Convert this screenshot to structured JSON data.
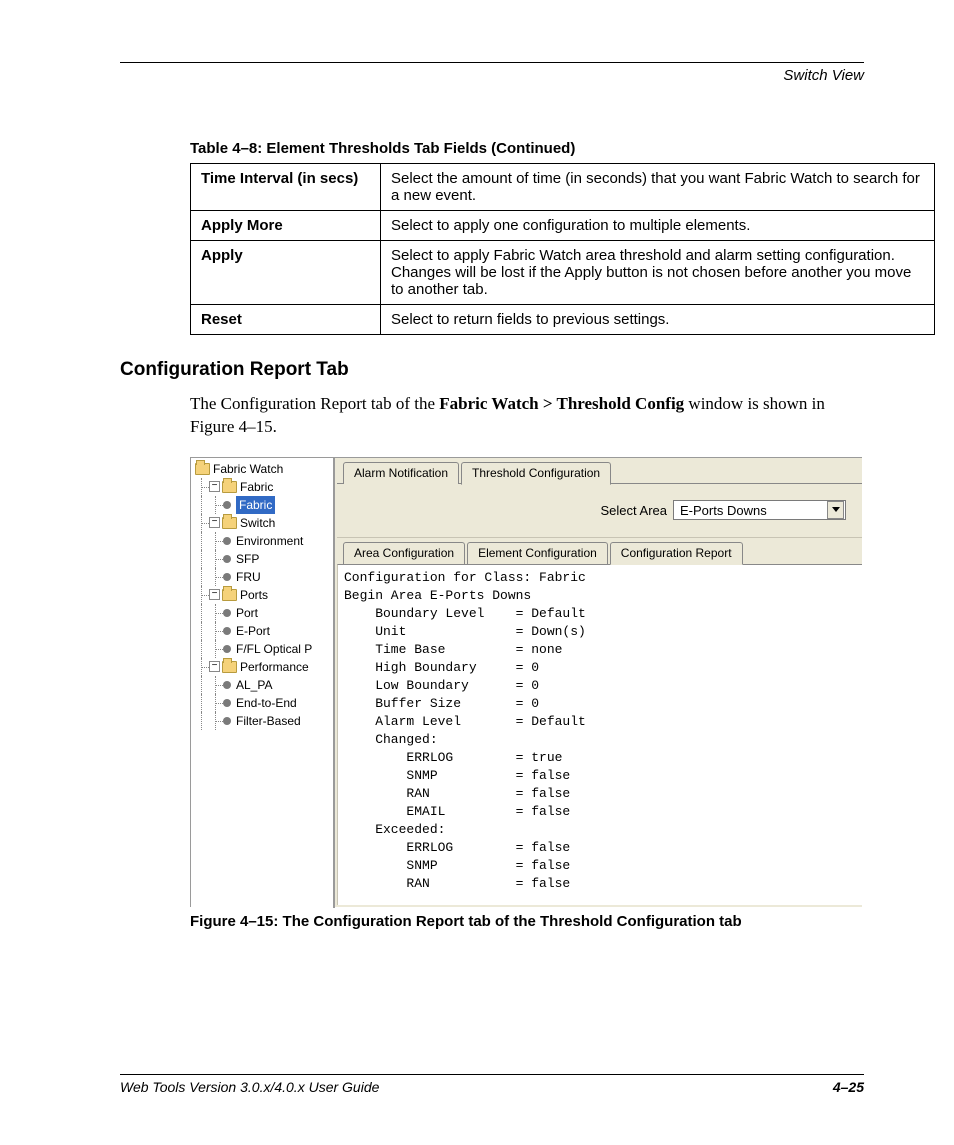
{
  "header": {
    "section": "Switch View"
  },
  "table": {
    "caption": "Table 4–8:  Element Thresholds Tab Fields (Continued)",
    "rows": [
      {
        "k": "Time Interval (in secs)",
        "v": "Select the amount of time (in seconds) that you want Fabric Watch to search for a new event."
      },
      {
        "k": "Apply More",
        "v": "Select to apply one configuration to multiple elements."
      },
      {
        "k": "Apply",
        "v": "Select to apply Fabric Watch area threshold and alarm setting configuration. Changes will be lost if the Apply button is not chosen before another you move to another tab."
      },
      {
        "k": "Reset",
        "v": "Select to return fields to previous settings."
      }
    ]
  },
  "section_heading": "Configuration Report Tab",
  "paragraph": {
    "pre": "The Configuration Report tab of the ",
    "bold": "Fabric Watch > Threshold Config",
    "post": " window is shown in Figure 4–15."
  },
  "figure": {
    "tree": {
      "root": "Fabric Watch",
      "groups": [
        {
          "label": "Fabric",
          "children": [
            {
              "label": "Fabric",
              "selected": true
            }
          ]
        },
        {
          "label": "Switch",
          "children": [
            {
              "label": "Environment"
            },
            {
              "label": "SFP"
            },
            {
              "label": "FRU"
            }
          ]
        },
        {
          "label": "Ports",
          "children": [
            {
              "label": "Port"
            },
            {
              "label": "E-Port"
            },
            {
              "label": "F/FL Optical P"
            }
          ]
        },
        {
          "label": "Performance",
          "children": [
            {
              "label": "AL_PA"
            },
            {
              "label": "End-to-End"
            },
            {
              "label": "Filter-Based"
            }
          ]
        }
      ]
    },
    "top_tabs": {
      "inactive": "Alarm Notification",
      "active": "Threshold Configuration"
    },
    "select_area": {
      "label": "Select Area",
      "value": "E-Ports Downs"
    },
    "sub_tabs": {
      "a": "Area Configuration",
      "b": "Element Configuration",
      "c": "Configuration Report"
    },
    "report_lines": [
      "Configuration for Class: Fabric",
      "Begin Area E-Ports Downs",
      "    Boundary Level    = Default",
      "    Unit              = Down(s)",
      "    Time Base         = none",
      "    High Boundary     = 0",
      "    Low Boundary      = 0",
      "    Buffer Size       = 0",
      "    Alarm Level       = Default",
      "    Changed:",
      "        ERRLOG        = true",
      "        SNMP          = false",
      "        RAN           = false",
      "        EMAIL         = false",
      "    Exceeded:",
      "        ERRLOG        = false",
      "        SNMP          = false",
      "        RAN           = false"
    ],
    "caption": "Figure 4–15:  The Configuration Report tab of the Threshold Configuration tab"
  },
  "footer": {
    "left": "Web Tools Version 3.0.x/4.0.x User Guide",
    "right": "4–25"
  }
}
